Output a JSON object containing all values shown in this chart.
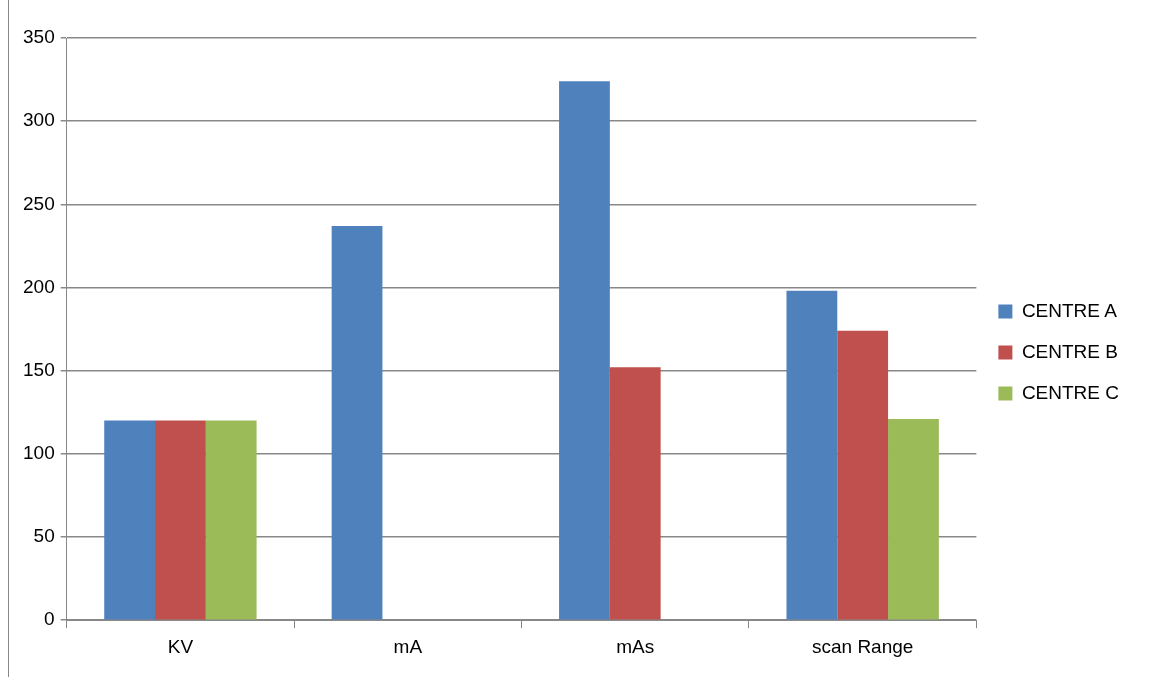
{
  "chart_data": {
    "type": "bar",
    "categories": [
      "KV",
      "mA",
      "mAs",
      "scan Range"
    ],
    "series": [
      {
        "name": "CENTRE A",
        "color": "#4f81bd",
        "values": [
          120,
          237,
          324,
          198
        ]
      },
      {
        "name": "CENTRE B",
        "color": "#c0504d",
        "values": [
          120,
          null,
          152,
          174
        ]
      },
      {
        "name": "CENTRE C",
        "color": "#9bbb59",
        "values": [
          120,
          null,
          null,
          121
        ]
      }
    ],
    "ylim": [
      0,
      350
    ],
    "yticks": [
      0,
      50,
      100,
      150,
      200,
      250,
      300,
      350
    ],
    "grid": "y",
    "legend": "right"
  }
}
